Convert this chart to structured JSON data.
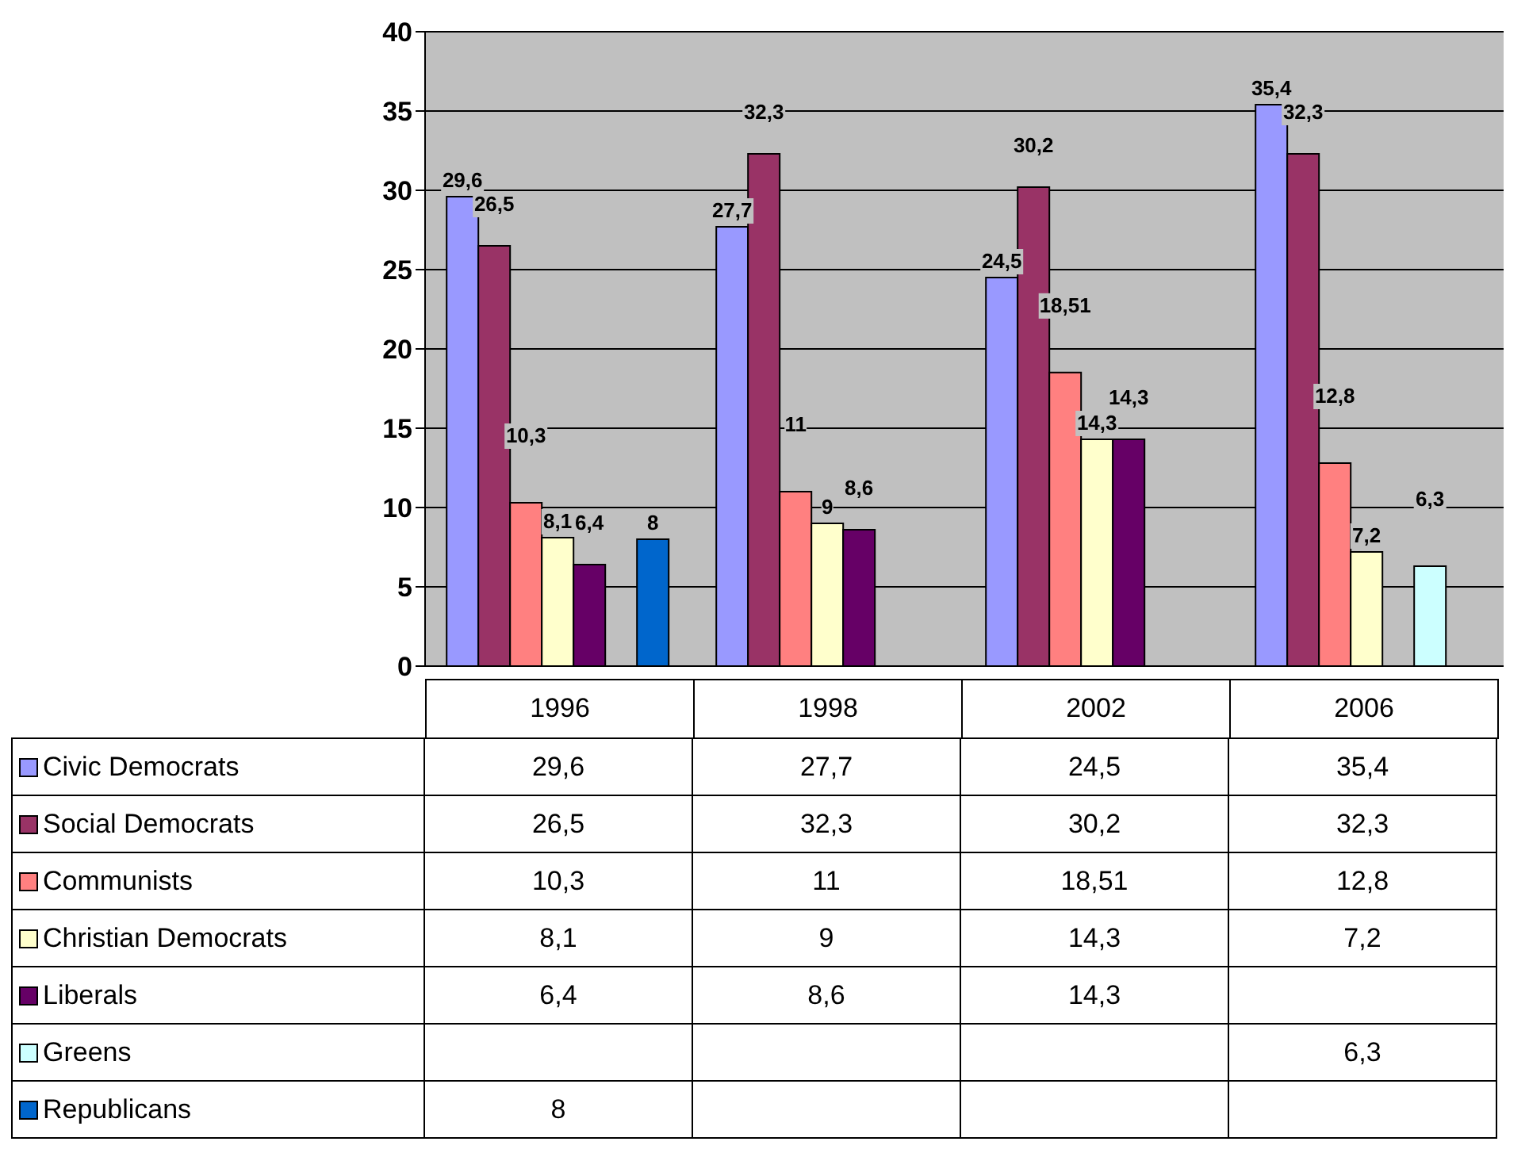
{
  "chart_data": {
    "type": "bar",
    "categories": [
      "1996",
      "1998",
      "2002",
      "2006"
    ],
    "series": [
      {
        "name": "Civic Democrats",
        "color": "#9999ff",
        "values": [
          29.6,
          27.7,
          24.5,
          35.4
        ],
        "value_labels": [
          "29,6",
          "27,7",
          "24,5",
          "35,4"
        ]
      },
      {
        "name": "Social Democrats",
        "color": "#993366",
        "values": [
          26.5,
          32.3,
          30.2,
          32.3
        ],
        "value_labels": [
          "26,5",
          "32,3",
          "30,2",
          "32,3"
        ]
      },
      {
        "name": "Communists",
        "color": "#ff8080",
        "values": [
          10.3,
          11,
          18.51,
          12.8
        ],
        "value_labels": [
          "10,3",
          "11",
          "18,51",
          "12,8"
        ]
      },
      {
        "name": "Christian Democrats",
        "color": "#ffffcc",
        "values": [
          8.1,
          9,
          14.3,
          7.2
        ],
        "value_labels": [
          "8,1",
          "9",
          "14,3",
          "7,2"
        ]
      },
      {
        "name": "Liberals",
        "color": "#660066",
        "values": [
          6.4,
          8.6,
          14.3,
          null
        ],
        "value_labels": [
          "6,4",
          "8,6",
          "14,3",
          null
        ]
      },
      {
        "name": "Greens",
        "color": "#ccffff",
        "values": [
          null,
          null,
          null,
          6.3
        ],
        "value_labels": [
          null,
          null,
          null,
          "6,3"
        ]
      },
      {
        "name": "Republicans",
        "color": "#0066cc",
        "values": [
          8,
          null,
          null,
          null
        ],
        "value_labels": [
          "8",
          null,
          null,
          null
        ]
      }
    ],
    "ylim": [
      0,
      40
    ],
    "yticks": [
      0,
      5,
      10,
      15,
      20,
      25,
      30,
      35,
      40
    ],
    "grid": "y",
    "legend": "bottom"
  }
}
